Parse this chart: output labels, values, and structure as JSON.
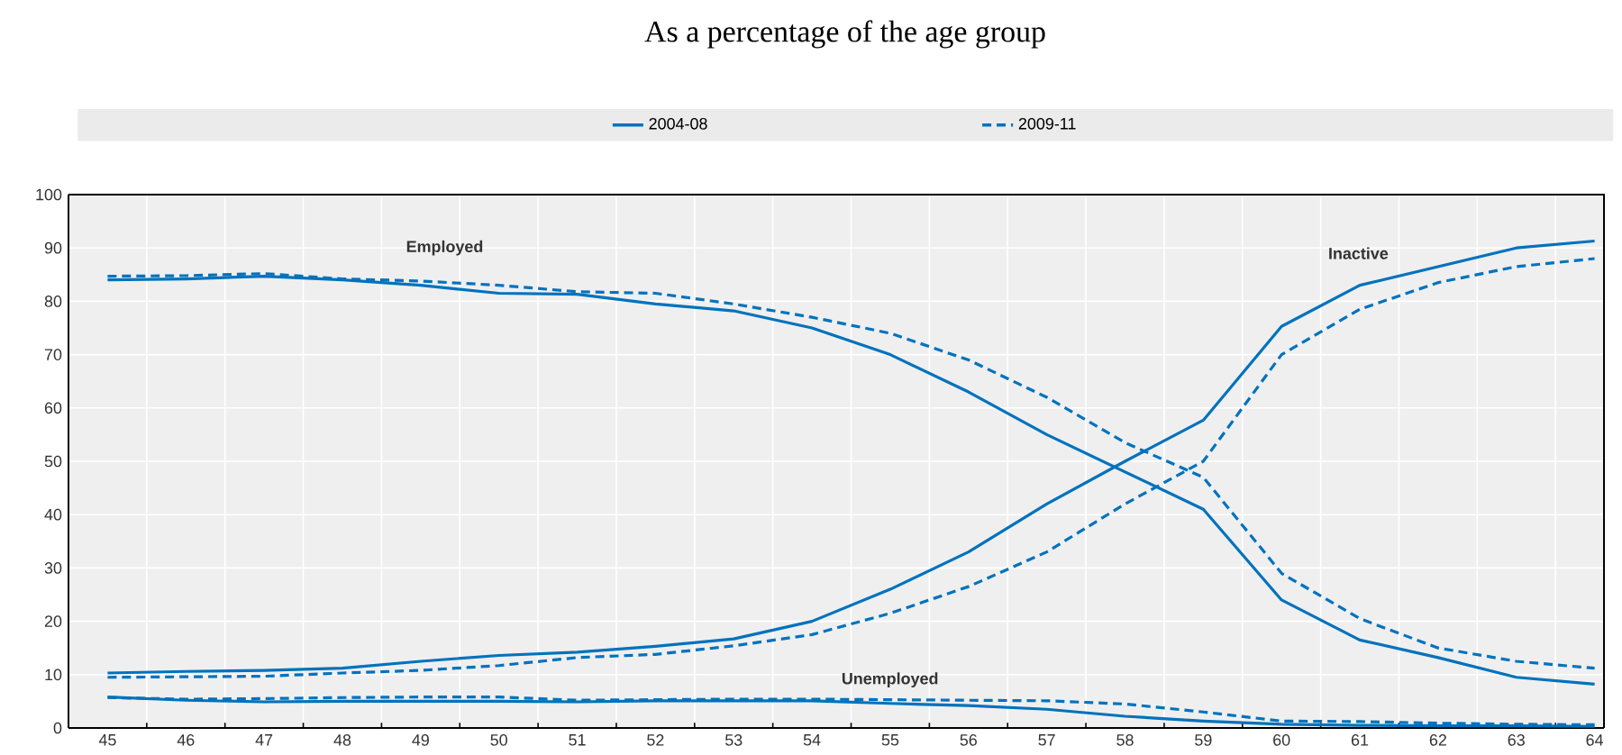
{
  "chart_data": {
    "type": "line",
    "title": "As a percentage of the age group",
    "categories": [
      "45",
      "46",
      "47",
      "48",
      "49",
      "50",
      "51",
      "52",
      "53",
      "54",
      "55",
      "56",
      "57",
      "58",
      "59",
      "60",
      "61",
      "62",
      "63",
      "64"
    ],
    "series": [
      {
        "name": "2004-08",
        "color": "#0072bc",
        "line_style": "solid",
        "values": [
          84,
          84.2,
          84.7,
          84,
          83,
          81.5,
          81.3,
          79.5,
          78.2,
          75,
          70,
          63,
          55,
          48,
          41,
          24,
          16.5,
          13.2,
          9.5,
          8.2
        ]
      },
      {
        "name": "2009-11",
        "color": "#0072bc",
        "line_style": "dashed",
        "values": [
          84.7,
          84.8,
          85.2,
          84.2,
          83.8,
          83,
          81.8,
          81.5,
          79.5,
          77,
          74,
          69,
          62,
          53.5,
          47,
          29,
          20.5,
          15,
          12.5,
          11.2
        ]
      },
      {
        "color": "#0072bc",
        "line_style": "solid",
        "values": [
          10.3,
          10.6,
          10.8,
          11.2,
          12.5,
          13.6,
          14.2,
          15.3,
          16.7,
          20,
          26,
          33,
          42,
          50,
          57.7,
          75.3,
          83,
          86.5,
          90,
          91.3
        ]
      },
      {
        "color": "#0072bc",
        "line_style": "dashed",
        "values": [
          9.5,
          9.6,
          9.7,
          10.3,
          10.8,
          11.7,
          13.2,
          13.8,
          15.4,
          17.5,
          21.5,
          26.5,
          33,
          42,
          50,
          70,
          78.5,
          83.5,
          86.5,
          88
        ]
      },
      {
        "color": "#0072bc",
        "line_style": "solid",
        "values": [
          5.8,
          5.2,
          4.9,
          5,
          5,
          5,
          4.9,
          5.1,
          5.1,
          5.1,
          4.6,
          4.2,
          3.5,
          2.2,
          1.3,
          0.7,
          0.5,
          0.4,
          0.4,
          0.3
        ]
      },
      {
        "color": "#0072bc",
        "line_style": "dashed",
        "values": [
          5.7,
          5.4,
          5.5,
          5.7,
          5.8,
          5.8,
          5.2,
          5.3,
          5.4,
          5.4,
          5.3,
          5.2,
          5.1,
          4.5,
          3,
          1.3,
          1.2,
          0.9,
          0.7,
          0.6
        ]
      }
    ],
    "ylim": [
      0,
      100
    ],
    "yticks": [
      0,
      10,
      20,
      30,
      40,
      50,
      60,
      70,
      80,
      90,
      100
    ],
    "grid": true,
    "legend": "top",
    "annotations": [
      "Employed",
      "Inactive",
      "Unemployed"
    ]
  }
}
